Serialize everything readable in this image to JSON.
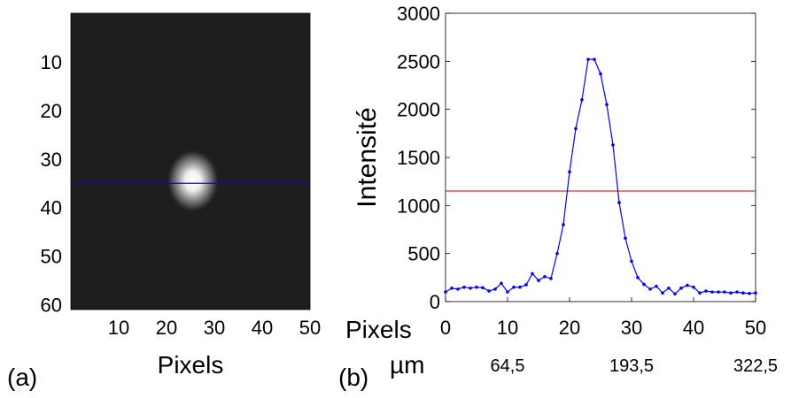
{
  "panel_a": {
    "label": "(a)",
    "xlabel": "Pixels",
    "x_ticks": [
      "10",
      "20",
      "30",
      "40",
      "50"
    ],
    "y_ticks": [
      "10",
      "20",
      "30",
      "40",
      "50",
      "60"
    ],
    "xlim": [
      0,
      50
    ],
    "ylim": [
      0,
      61
    ],
    "row_line_y": 35,
    "row_line_color": "#0000ff",
    "spot_center": [
      25.5,
      34.5
    ],
    "background": "#1e1e1e"
  },
  "panel_b": {
    "label": "(b)",
    "ylabel": "Intensité",
    "x_row1_label": "Pixels",
    "x_ticks": [
      "0",
      "10",
      "20",
      "30",
      "40",
      "50"
    ],
    "x_row2_label": "µm",
    "x_ticks_um": [
      "64,5",
      "193,5",
      "322,5"
    ],
    "y_ticks": [
      "0",
      "500",
      "1000",
      "1500",
      "2000",
      "2500",
      "3000"
    ]
  },
  "chart_data": [
    {
      "type": "heatmap",
      "description_shown": "grayscale camera image with bright spot",
      "xlabel": "Pixels",
      "xlim": [
        0,
        50
      ],
      "ylim": [
        0,
        61
      ],
      "horizontal_line_y": 35
    },
    {
      "type": "line",
      "xlabel": "Pixels",
      "ylabel": "Intensité",
      "xlim": [
        0,
        50
      ],
      "ylim": [
        0,
        3000
      ],
      "grid": false,
      "series": [
        {
          "color": "#0000ff",
          "x": [
            0,
            1,
            2,
            3,
            4,
            5,
            6,
            7,
            8,
            9,
            10,
            11,
            12,
            13,
            14,
            15,
            16,
            17,
            18,
            19,
            20,
            21,
            22,
            23,
            24,
            25,
            26,
            27,
            28,
            29,
            30,
            31,
            32,
            33,
            34,
            35,
            36,
            37,
            38,
            39,
            40,
            41,
            42,
            43,
            44,
            45,
            46,
            47,
            48,
            49,
            50
          ],
          "values": [
            100,
            140,
            130,
            150,
            140,
            150,
            145,
            110,
            130,
            190,
            100,
            150,
            150,
            175,
            290,
            220,
            260,
            240,
            500,
            800,
            1350,
            1800,
            2100,
            2520,
            2520,
            2370,
            2050,
            1630,
            1030,
            660,
            420,
            250,
            180,
            130,
            160,
            90,
            140,
            80,
            140,
            170,
            150,
            90,
            110,
            100,
            100,
            100,
            90,
            100,
            90,
            85,
            90
          ]
        }
      ],
      "threshold_line": {
        "value": 1150,
        "color": "#cc0000"
      }
    }
  ]
}
